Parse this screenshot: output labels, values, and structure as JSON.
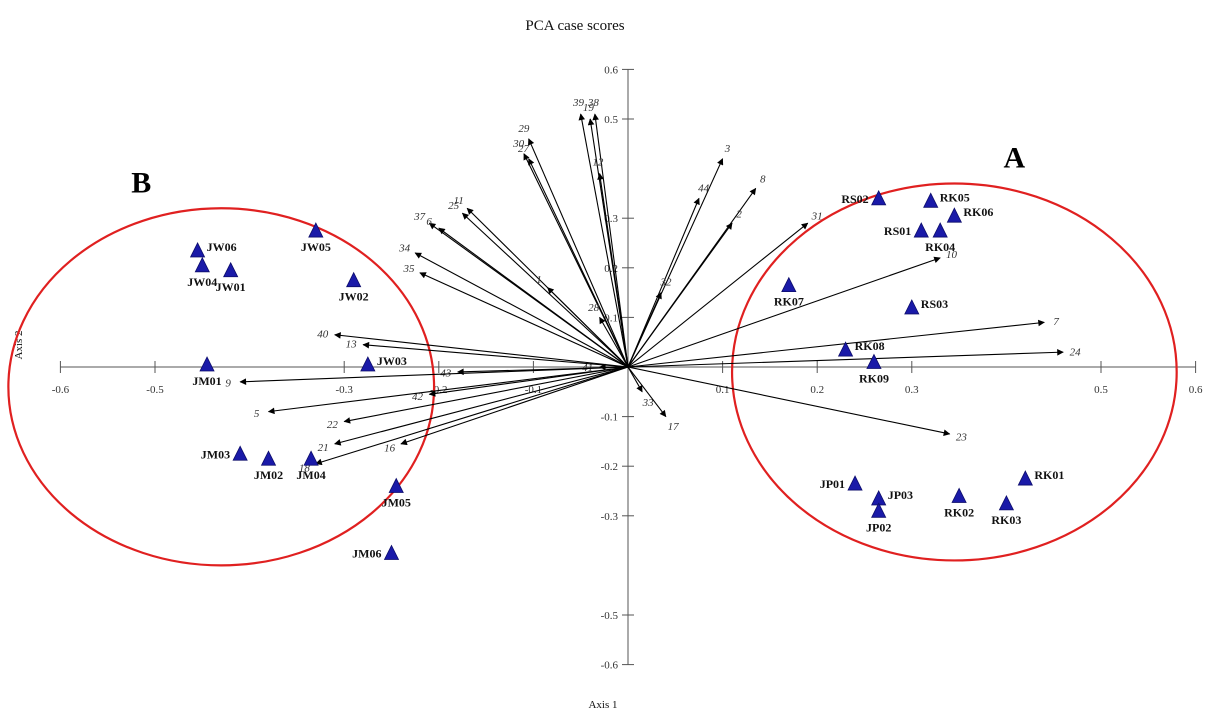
{
  "chart_data": {
    "type": "scatter",
    "title": "PCA case scores",
    "xlabel": "Axis 1",
    "ylabel": "Axis 2",
    "xlim": [
      -0.6,
      0.6
    ],
    "ylim": [
      -0.6,
      0.6
    ],
    "x_tick_labels": [
      "-0.6",
      "-0.5",
      "-0.3",
      "-0.2",
      "-0.1",
      "0.1",
      "0.2",
      "0.3",
      "0.5",
      "0.6"
    ],
    "y_tick_labels": [
      "0.6",
      "0.5",
      "0.3",
      "0.2",
      "0.1",
      "-0.1",
      "-0.2",
      "-0.3",
      "-0.5",
      "-0.6"
    ],
    "colors": {
      "marker": "#1a1aa8",
      "ellipse": "#e02020",
      "arrow": "#000000"
    },
    "groups": [
      {
        "label": "A",
        "ellipse": {
          "cx": 0.345,
          "cy": -0.01,
          "rx": 0.235,
          "ry": 0.38
        }
      },
      {
        "label": "B",
        "ellipse": {
          "cx": -0.43,
          "cy": -0.04,
          "rx": 0.225,
          "ry": 0.36
        }
      }
    ],
    "points": [
      {
        "label": "JW06",
        "x": -0.455,
        "y": 0.23
      },
      {
        "label": "JW04",
        "x": -0.45,
        "y": 0.2
      },
      {
        "label": "JW01",
        "x": -0.42,
        "y": 0.19
      },
      {
        "label": "JW05",
        "x": -0.33,
        "y": 0.27
      },
      {
        "label": "JW02",
        "x": -0.29,
        "y": 0.17
      },
      {
        "label": "JW03",
        "x": -0.275,
        "y": 0.0
      },
      {
        "label": "JM01",
        "x": -0.445,
        "y": 0.0
      },
      {
        "label": "JM03",
        "x": -0.41,
        "y": -0.18
      },
      {
        "label": "JM02",
        "x": -0.38,
        "y": -0.19
      },
      {
        "label": "JM04",
        "x": -0.335,
        "y": -0.19
      },
      {
        "label": "JM05",
        "x": -0.245,
        "y": -0.245
      },
      {
        "label": "JM06",
        "x": -0.25,
        "y": -0.38
      },
      {
        "label": "RS02",
        "x": 0.265,
        "y": 0.335
      },
      {
        "label": "RK05",
        "x": 0.32,
        "y": 0.33
      },
      {
        "label": "RK06",
        "x": 0.345,
        "y": 0.3
      },
      {
        "label": "RS01",
        "x": 0.31,
        "y": 0.27
      },
      {
        "label": "RK04",
        "x": 0.33,
        "y": 0.27
      },
      {
        "label": "RK07",
        "x": 0.17,
        "y": 0.16
      },
      {
        "label": "RS03",
        "x": 0.3,
        "y": 0.115
      },
      {
        "label": "RK08",
        "x": 0.23,
        "y": 0.03
      },
      {
        "label": "RK09",
        "x": 0.26,
        "y": 0.005
      },
      {
        "label": "JP01",
        "x": 0.24,
        "y": -0.24
      },
      {
        "label": "JP03",
        "x": 0.265,
        "y": -0.27
      },
      {
        "label": "JP02",
        "x": 0.265,
        "y": -0.295
      },
      {
        "label": "RK02",
        "x": 0.35,
        "y": -0.265
      },
      {
        "label": "RK03",
        "x": 0.4,
        "y": -0.28
      },
      {
        "label": "RK01",
        "x": 0.42,
        "y": -0.23
      }
    ],
    "vectors": [
      {
        "label": "39",
        "x": -0.05,
        "y": 0.51
      },
      {
        "label": "19",
        "x": -0.04,
        "y": 0.5
      },
      {
        "label": "38",
        "x": -0.035,
        "y": 0.51
      },
      {
        "label": "29",
        "x": -0.105,
        "y": 0.46
      },
      {
        "label": "30",
        "x": -0.11,
        "y": 0.43
      },
      {
        "label": "27",
        "x": -0.105,
        "y": 0.42
      },
      {
        "label": "12",
        "x": -0.03,
        "y": 0.39
      },
      {
        "label": "3",
        "x": 0.1,
        "y": 0.42
      },
      {
        "label": "44",
        "x": 0.075,
        "y": 0.34
      },
      {
        "label": "8",
        "x": 0.135,
        "y": 0.36
      },
      {
        "label": "2",
        "x": 0.11,
        "y": 0.29
      },
      {
        "label": "31",
        "x": 0.19,
        "y": 0.29
      },
      {
        "label": "32",
        "x": 0.035,
        "y": 0.15
      },
      {
        "label": "11",
        "x": -0.17,
        "y": 0.32
      },
      {
        "label": "25",
        "x": -0.175,
        "y": 0.31
      },
      {
        "label": "37",
        "x": -0.21,
        "y": 0.29
      },
      {
        "label": "6",
        "x": -0.2,
        "y": 0.28
      },
      {
        "label": "34",
        "x": -0.225,
        "y": 0.23
      },
      {
        "label": "35",
        "x": -0.22,
        "y": 0.19
      },
      {
        "label": "1",
        "x": -0.085,
        "y": 0.16
      },
      {
        "label": "28",
        "x": -0.03,
        "y": 0.1
      },
      {
        "label": "10",
        "x": 0.33,
        "y": 0.22
      },
      {
        "label": "7",
        "x": 0.44,
        "y": 0.09
      },
      {
        "label": "24",
        "x": 0.46,
        "y": 0.03
      },
      {
        "label": "23",
        "x": 0.34,
        "y": -0.135
      },
      {
        "label": "40",
        "x": -0.31,
        "y": 0.065
      },
      {
        "label": "13",
        "x": -0.28,
        "y": 0.045
      },
      {
        "label": "41",
        "x": -0.03,
        "y": 0.0
      },
      {
        "label": "43",
        "x": -0.18,
        "y": -0.01
      },
      {
        "label": "9",
        "x": -0.41,
        "y": -0.03
      },
      {
        "label": "42",
        "x": -0.21,
        "y": -0.055
      },
      {
        "label": "5",
        "x": -0.38,
        "y": -0.09
      },
      {
        "label": "22",
        "x": -0.3,
        "y": -0.11
      },
      {
        "label": "21",
        "x": -0.31,
        "y": -0.155
      },
      {
        "label": "16",
        "x": -0.24,
        "y": -0.155
      },
      {
        "label": "18",
        "x": -0.33,
        "y": -0.195
      },
      {
        "label": "33",
        "x": 0.015,
        "y": -0.05
      },
      {
        "label": "17",
        "x": 0.04,
        "y": -0.1
      }
    ]
  }
}
